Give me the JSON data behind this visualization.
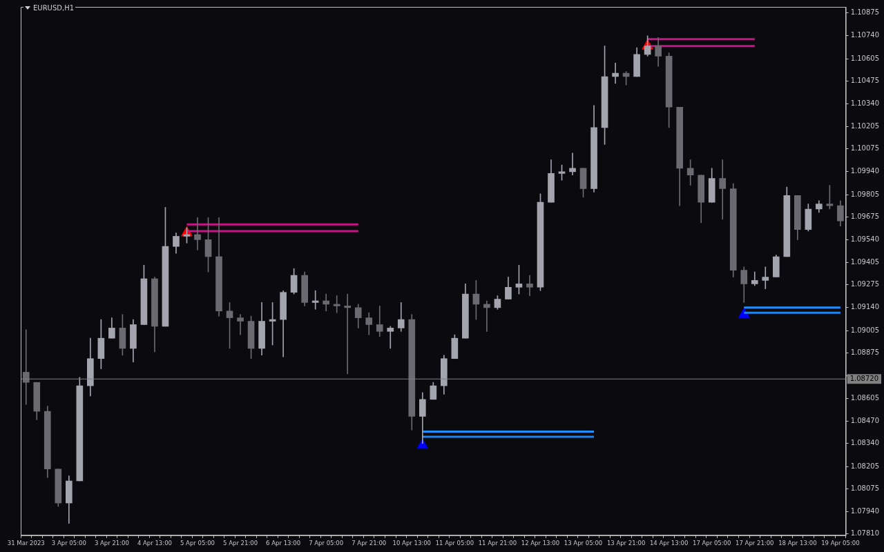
{
  "chart_data": {
    "type": "candlestick",
    "title": "EURUSD,H1",
    "categories": [
      "31 Mar 2023",
      null,
      null,
      null,
      "3 Apr 05:00",
      null,
      null,
      null,
      "3 Apr 21:00",
      null,
      null,
      null,
      "4 Apr 13:00",
      null,
      null,
      null,
      "5 Apr 05:00",
      null,
      null,
      null,
      "5 Apr 21:00",
      null,
      null,
      null,
      "6 Apr 13:00",
      null,
      null,
      null,
      "7 Apr 05:00",
      null,
      null,
      null,
      "7 Apr 21:00",
      null,
      null,
      null,
      "10 Apr 13:00",
      null,
      null,
      null,
      "11 Apr 05:00",
      null,
      null,
      null,
      "11 Apr 21:00",
      null,
      null,
      null,
      "12 Apr 13:00",
      null,
      null,
      null,
      "13 Apr 05:00",
      null,
      null,
      null,
      "13 Apr 21:00",
      null,
      null,
      null,
      "14 Apr 13:00",
      null,
      null,
      null,
      "17 Apr 05:00",
      null,
      null,
      null,
      "17 Apr 21:00",
      null,
      null,
      null,
      "18 Apr 13:00",
      null,
      null,
      null,
      "19 Apr 05:00"
    ],
    "ohlc": [
      [
        1.0876,
        1.0901,
        1.0857,
        1.087
      ],
      [
        1.087,
        1.087,
        1.0848,
        1.0853
      ],
      [
        1.0853,
        1.0856,
        1.0814,
        1.0819
      ],
      [
        1.0819,
        1.0819,
        1.0797,
        1.0799
      ],
      [
        1.0799,
        1.0815,
        1.0787,
        1.0812
      ],
      [
        1.0812,
        1.0873,
        1.0812,
        1.0868
      ],
      [
        1.0868,
        1.0896,
        1.0862,
        1.0884
      ],
      [
        1.0884,
        1.0907,
        1.0878,
        1.0896
      ],
      [
        1.0896,
        1.0908,
        1.0896,
        1.0902
      ],
      [
        1.0902,
        1.091,
        1.0886,
        1.089
      ],
      [
        1.089,
        1.0907,
        1.0882,
        1.0904
      ],
      [
        1.0904,
        1.0939,
        1.0904,
        1.0931
      ],
      [
        1.0931,
        1.0932,
        1.0888,
        1.0903
      ],
      [
        1.0903,
        1.0973,
        1.0903,
        1.095
      ],
      [
        1.095,
        1.0958,
        1.0946,
        1.0956
      ],
      [
        1.0956,
        1.0961,
        1.0952,
        1.0957
      ],
      [
        1.0957,
        1.0967,
        1.0948,
        1.0954
      ],
      [
        1.0954,
        1.0967,
        1.0935,
        1.0944
      ],
      [
        1.0944,
        1.0967,
        1.0909,
        1.0912
      ],
      [
        1.0912,
        1.0917,
        1.089,
        1.0908
      ],
      [
        1.0908,
        1.091,
        1.0898,
        1.0906
      ],
      [
        1.0906,
        1.0909,
        1.0884,
        1.089
      ],
      [
        1.089,
        1.0917,
        1.0886,
        1.0906
      ],
      [
        1.0906,
        1.0917,
        1.0892,
        1.0907
      ],
      [
        1.0907,
        1.0924,
        1.0885,
        1.0923
      ],
      [
        1.0923,
        1.0937,
        1.0922,
        1.0933
      ],
      [
        1.0933,
        1.0935,
        1.0915,
        1.0917
      ],
      [
        1.0917,
        1.0924,
        1.0913,
        1.0918
      ],
      [
        1.0918,
        1.0922,
        1.0912,
        1.0916
      ],
      [
        1.0916,
        1.0921,
        1.0911,
        1.0915
      ],
      [
        1.0915,
        1.0922,
        1.0875,
        1.0914
      ],
      [
        1.0914,
        1.0916,
        1.0902,
        1.0908
      ],
      [
        1.0908,
        1.0911,
        1.0898,
        1.0904
      ],
      [
        1.0904,
        1.0915,
        1.0897,
        1.09
      ],
      [
        1.09,
        1.0903,
        1.089,
        1.0902
      ],
      [
        1.0902,
        1.0917,
        1.09,
        1.0907
      ],
      [
        1.0907,
        1.091,
        1.0842,
        1.085
      ],
      [
        1.085,
        1.0864,
        1.0834,
        1.086
      ],
      [
        1.086,
        1.087,
        1.086,
        1.0868
      ],
      [
        1.0868,
        1.0886,
        1.0863,
        1.0884
      ],
      [
        1.0884,
        1.0898,
        1.0884,
        1.0896
      ],
      [
        1.0896,
        1.0928,
        1.0896,
        1.0922
      ],
      [
        1.0922,
        1.093,
        1.0907,
        1.0916
      ],
      [
        1.0916,
        1.0918,
        1.09,
        1.0914
      ],
      [
        1.0914,
        1.0921,
        1.0913,
        1.0919
      ],
      [
        1.0919,
        1.0932,
        1.0919,
        1.0926
      ],
      [
        1.0926,
        1.0939,
        1.0922,
        1.0928
      ],
      [
        1.0928,
        1.0933,
        1.0921,
        1.0926
      ],
      [
        1.0926,
        1.0981,
        1.0924,
        1.0976
      ],
      [
        1.0976,
        1.1001,
        1.0976,
        1.0993
      ],
      [
        1.0993,
        1.0998,
        1.0989,
        1.0994
      ],
      [
        1.0994,
        1.1005,
        1.0992,
        1.0996
      ],
      [
        1.0996,
        1.0996,
        1.0979,
        1.0984
      ],
      [
        1.0984,
        1.1033,
        1.0982,
        1.102
      ],
      [
        1.102,
        1.1068,
        1.101,
        1.105
      ],
      [
        1.105,
        1.1058,
        1.1046,
        1.1052
      ],
      [
        1.1052,
        1.1053,
        1.1045,
        1.105
      ],
      [
        1.105,
        1.1067,
        1.105,
        1.1063
      ],
      [
        1.1063,
        1.1074,
        1.1062,
        1.1068
      ],
      [
        1.1068,
        1.1073,
        1.1056,
        1.1062
      ],
      [
        1.1062,
        1.1064,
        1.102,
        1.1032
      ],
      [
        1.1032,
        1.1032,
        1.0974,
        1.0996
      ],
      [
        1.0996,
        1.1001,
        1.0986,
        1.0992
      ],
      [
        1.0992,
        1.0992,
        1.0964,
        1.0976
      ],
      [
        1.0976,
        1.0996,
        1.0976,
        1.099
      ],
      [
        1.099,
        1.1001,
        1.0966,
        1.0984
      ],
      [
        1.0984,
        1.0987,
        1.0932,
        1.0936
      ],
      [
        1.0936,
        1.0938,
        1.0917,
        1.0928
      ],
      [
        1.0928,
        1.0935,
        1.0927,
        1.093
      ],
      [
        1.093,
        1.0938,
        1.0925,
        1.0932
      ],
      [
        1.0932,
        1.0945,
        1.0932,
        1.0944
      ],
      [
        1.0944,
        1.0985,
        1.0944,
        1.098
      ],
      [
        1.098,
        1.098,
        1.0954,
        1.096
      ],
      [
        1.096,
        1.0975,
        1.0959,
        1.0972
      ],
      [
        1.0972,
        1.0977,
        1.097,
        1.0975
      ],
      [
        1.0975,
        1.0986,
        1.0972,
        1.0974
      ],
      [
        1.0974,
        1.0977,
        1.0962,
        1.0965
      ]
    ],
    "series": [
      {
        "type": "line",
        "color": "#c71585",
        "values": [
          null,
          null,
          null,
          null,
          null,
          null,
          null,
          null,
          null,
          null,
          null,
          null,
          null,
          null,
          null,
          1.0963,
          1.0963,
          1.0963,
          1.0963,
          1.0963,
          1.0963,
          1.0963,
          1.0963,
          1.0963,
          1.0963,
          1.0963,
          1.0963,
          1.0963,
          1.0963,
          1.0963,
          1.0963,
          1.0963,
          null,
          null,
          null,
          null,
          null,
          null,
          null,
          null,
          null,
          null,
          null,
          null,
          null,
          null,
          null,
          null,
          null,
          null,
          null,
          null,
          null,
          null,
          null,
          null,
          null,
          null,
          1.1072,
          1.1072,
          1.1072,
          1.1072,
          1.1072,
          1.1072,
          1.1072,
          1.1072,
          1.1072,
          1.1072,
          1.1072,
          null,
          null,
          null,
          null,
          null,
          null,
          null,
          null
        ]
      },
      {
        "type": "line",
        "color": "#c71585",
        "values": [
          null,
          null,
          null,
          null,
          null,
          null,
          null,
          null,
          null,
          null,
          null,
          null,
          null,
          null,
          null,
          1.0959,
          1.0959,
          1.0959,
          1.0959,
          1.0959,
          1.0959,
          1.0959,
          1.0959,
          1.0959,
          1.0959,
          1.0959,
          1.0959,
          1.0959,
          1.0959,
          1.0959,
          1.0959,
          1.0959,
          null,
          null,
          null,
          null,
          null,
          null,
          null,
          null,
          null,
          null,
          null,
          null,
          null,
          null,
          null,
          null,
          null,
          null,
          null,
          null,
          null,
          null,
          null,
          null,
          null,
          null,
          1.1068,
          1.1068,
          1.1068,
          1.1068,
          1.1068,
          1.1068,
          1.1068,
          1.1068,
          1.1068,
          1.1068,
          1.1068,
          null,
          null,
          null,
          null,
          null,
          null,
          null,
          null
        ]
      },
      {
        "type": "line",
        "color": "#1e90ff",
        "values": [
          null,
          null,
          null,
          null,
          null,
          null,
          null,
          null,
          null,
          null,
          null,
          null,
          null,
          null,
          null,
          null,
          null,
          null,
          null,
          null,
          null,
          null,
          null,
          null,
          null,
          null,
          null,
          null,
          null,
          null,
          null,
          null,
          null,
          null,
          null,
          null,
          null,
          1.0841,
          1.0841,
          1.0841,
          1.0841,
          1.0841,
          1.0841,
          1.0841,
          1.0841,
          1.0841,
          1.0841,
          1.0841,
          1.0841,
          1.0841,
          1.0841,
          1.0841,
          1.0841,
          1.0841,
          null,
          null,
          null,
          null,
          null,
          null,
          null,
          null,
          null,
          null,
          null,
          null,
          null,
          1.0914,
          1.0914,
          1.0914,
          1.0914,
          1.0914,
          1.0914,
          1.0914,
          1.0914,
          1.0914,
          1.0914
        ]
      },
      {
        "type": "line",
        "color": "#1c86ee",
        "values": [
          null,
          null,
          null,
          null,
          null,
          null,
          null,
          null,
          null,
          null,
          null,
          null,
          null,
          null,
          null,
          null,
          null,
          null,
          null,
          null,
          null,
          null,
          null,
          null,
          null,
          null,
          null,
          null,
          null,
          null,
          null,
          null,
          null,
          null,
          null,
          null,
          null,
          1.0838,
          1.0838,
          1.0838,
          1.0838,
          1.0838,
          1.0838,
          1.0838,
          1.0838,
          1.0838,
          1.0838,
          1.0838,
          1.0838,
          1.0838,
          1.0838,
          1.0838,
          1.0838,
          1.0838,
          null,
          null,
          null,
          null,
          null,
          null,
          null,
          null,
          null,
          null,
          null,
          null,
          null,
          1.0911,
          1.0911,
          1.0911,
          1.0911,
          1.0911,
          1.0911,
          1.0911,
          1.0911,
          1.0911,
          1.0911
        ]
      },
      {
        "type": "scatter",
        "color": "#ff0000",
        "marker": "triangle",
        "values": [
          null,
          null,
          null,
          null,
          null,
          null,
          null,
          null,
          null,
          null,
          null,
          null,
          null,
          null,
          null,
          1.0958,
          null,
          null,
          null,
          null,
          null,
          null,
          null,
          null,
          null,
          null,
          null,
          null,
          null,
          null,
          null,
          null,
          null,
          null,
          null,
          null,
          null,
          null,
          null,
          null,
          null,
          null,
          null,
          null,
          null,
          null,
          null,
          null,
          null,
          null,
          null,
          null,
          null,
          null,
          null,
          null,
          null,
          null,
          1.1068,
          null,
          null,
          null,
          null,
          null,
          null,
          null,
          null,
          null,
          null,
          null,
          null,
          null,
          null,
          null,
          null,
          null,
          null
        ]
      },
      {
        "type": "scatter",
        "color": "#0000ff",
        "marker": "triangle",
        "values": [
          null,
          null,
          null,
          null,
          null,
          null,
          null,
          null,
          null,
          null,
          null,
          null,
          null,
          null,
          null,
          null,
          null,
          null,
          null,
          null,
          null,
          null,
          null,
          null,
          null,
          null,
          null,
          null,
          null,
          null,
          null,
          null,
          null,
          null,
          null,
          null,
          null,
          1.0833,
          null,
          null,
          null,
          null,
          null,
          null,
          null,
          null,
          null,
          null,
          null,
          null,
          null,
          null,
          null,
          null,
          null,
          null,
          null,
          null,
          null,
          null,
          null,
          null,
          null,
          null,
          null,
          null,
          null,
          1.091,
          null,
          null,
          null,
          null,
          null,
          null,
          null,
          null,
          null
        ]
      }
    ],
    "ylim": [
      1.078,
      1.1091
    ],
    "yticks": [
      {
        "value": 1.0781,
        "label": "1.07810"
      },
      {
        "value": 1.0794,
        "label": "1.07940"
      },
      {
        "value": 1.08075,
        "label": "1.08075"
      },
      {
        "value": 1.08205,
        "label": "1.08205"
      },
      {
        "value": 1.0834,
        "label": "1.08340"
      },
      {
        "value": 1.0847,
        "label": "1.08470"
      },
      {
        "value": 1.08605,
        "label": "1.08605"
      },
      {
        "value": 1.0874,
        "label": null
      },
      {
        "value": 1.08875,
        "label": "1.08875"
      },
      {
        "value": 1.09005,
        "label": "1.09005"
      },
      {
        "value": 1.0914,
        "label": "1.09140"
      },
      {
        "value": 1.09275,
        "label": "1.09275"
      },
      {
        "value": 1.09405,
        "label": "1.09405"
      },
      {
        "value": 1.0954,
        "label": "1.09540"
      },
      {
        "value": 1.09675,
        "label": "1.09675"
      },
      {
        "value": 1.09805,
        "label": "1.09805"
      },
      {
        "value": 1.0994,
        "label": "1.09940"
      },
      {
        "value": 1.10075,
        "label": "1.10075"
      },
      {
        "value": 1.10205,
        "label": "1.10205"
      },
      {
        "value": 1.1034,
        "label": "1.10340"
      },
      {
        "value": 1.10475,
        "label": "1.10475"
      },
      {
        "value": 1.10605,
        "label": "1.10605"
      },
      {
        "value": 1.1074,
        "label": "1.10740"
      },
      {
        "value": 1.10875,
        "label": "1.10875"
      }
    ],
    "ref_lines": [
      {
        "axis": "y",
        "value": 1.0872,
        "label": "1.08720",
        "color": "#808080"
      }
    ],
    "grid": false,
    "legend": false
  }
}
